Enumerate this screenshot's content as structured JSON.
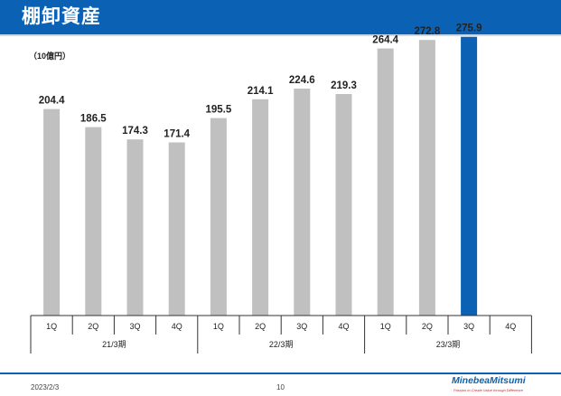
{
  "header": {
    "title": "棚卸資産"
  },
  "unit_label": "（10億円）",
  "footer": {
    "date": "2023/2/3",
    "page": "10",
    "logo_name": "MinebeaMitsumi",
    "logo_tagline": "Passion to Create Value through Difference"
  },
  "colors": {
    "title_bar": "#0b62b5",
    "bar_default": "#c0c0c0",
    "bar_highlight": "#0b62b5"
  },
  "chart_data": {
    "type": "bar",
    "title": "",
    "xlabel": "",
    "ylabel": "",
    "unit": "（10億円）",
    "categories": [
      "1Q",
      "2Q",
      "3Q",
      "4Q",
      "1Q",
      "2Q",
      "3Q",
      "4Q",
      "1Q",
      "2Q",
      "3Q",
      "4Q"
    ],
    "groups": [
      {
        "label": "21/3期",
        "start": 0,
        "end": 3
      },
      {
        "label": "22/3期",
        "start": 4,
        "end": 7
      },
      {
        "label": "23/3期",
        "start": 8,
        "end": 11
      }
    ],
    "values": [
      204.4,
      186.5,
      174.3,
      171.4,
      195.5,
      214.1,
      224.6,
      219.3,
      264.4,
      272.8,
      275.9,
      null
    ],
    "data_labels": [
      "204.4",
      "186.5",
      "174.3",
      "171.4",
      "195.5",
      "214.1",
      "224.6",
      "219.3",
      "264.4",
      "272.8",
      "275.9",
      ""
    ],
    "highlight_index": 10,
    "ylim": [
      0,
      300
    ],
    "grid": false,
    "legend": "none"
  }
}
